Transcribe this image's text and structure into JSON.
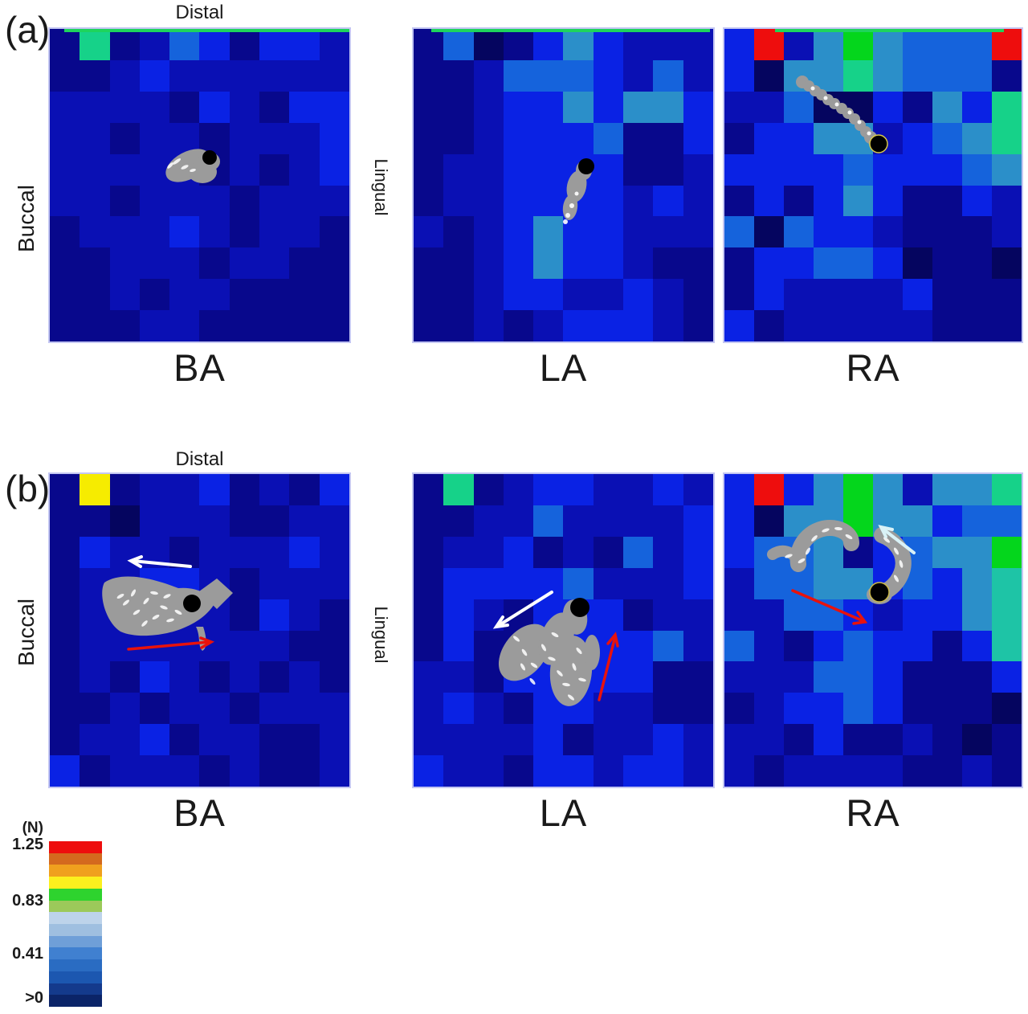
{
  "figure_labels": {
    "panel_a": "(a)",
    "panel_b": "(b)",
    "distal_a": "Distal",
    "distal_b": "Distal",
    "buccal_a": "Buccal",
    "lingual_a": "Lingual",
    "buccal_b": "Buccal",
    "lingual_b": "Lingual",
    "title_a_ba": "BA",
    "title_a_la": "LA",
    "title_a_ra": "RA",
    "title_b_ba": "BA",
    "title_b_la": "LA",
    "title_b_ra": "RA"
  },
  "legend": {
    "unit": "(N)",
    "ticks": {
      "max": "1.25",
      "mid_high": "0.83",
      "mid_low": "0.41",
      "min": ">0"
    },
    "band_colors_top_to_bottom": [
      "#EE0D0D",
      "#D4691E",
      "#F0A01E",
      "#FCF01E",
      "#2ED32E",
      "#9CC95A",
      "#BDD3EA",
      "#9FBFE0",
      "#6F9FD8",
      "#4080D0",
      "#2A6CC2",
      "#1C57B0",
      "#143A8C",
      "#0B2468"
    ]
  },
  "chart_data": {
    "type": "heatmap",
    "rows": 10,
    "cols": 10,
    "unit": "N",
    "scale_tick_labels": [
      "1.25",
      "0.83",
      "0.41",
      ">0"
    ],
    "palette": {
      "d3": "#05055F",
      "d2": "#08088C",
      "d1": "#0A10B4",
      "b0": "#0A22E4",
      "az": "#1563DC",
      "cy": "#2B8FC9",
      "tg": "#1EC4A6",
      "sg": "#16D289",
      "gr": "#04D61C",
      "yl": "#F6EC00",
      "rd": "#EE0D0D"
    },
    "top_edge_strip_color": "#1ED45C",
    "grids": {
      "a_BA": [
        "d2 sg d2 d1 az b0 d2 b0 b0 d1",
        "d2 d2 d1 b0 d1 d1 d1 d1 d1 d1",
        "d1 d1 d1 d1 d2 b0 d1 d2 b0 b0",
        "d1 d1 d2 d1 d1 d2 d1 d1 d1 b0",
        "d1 d1 d1 d1 d1 d2 d1 d2 d1 b0",
        "d1 d1 d2 d1 d1 d1 d2 d1 d1 d1",
        "d2 d1 d1 d1 b0 d1 d2 d1 d1 d2",
        "d2 d2 d1 d1 d1 d2 d1 d1 d2 d2",
        "d2 d2 d1 d2 d1 d1 d2 d2 d2 d2",
        "d2 d2 d2 d1 d1 d2 d2 d2 d2 d2"
      ],
      "a_LA": [
        "d2 az d3 d2 b0 cy b0 d1 d1 d1",
        "d2 d2 d1 az az az b0 d1 az d1",
        "d2 d2 d1 b0 b0 cy b0 cy cy b0",
        "d2 d2 d1 b0 b0 b0 az d2 d2 b0",
        "d2 d1 d1 b0 b0 b0 b0 d2 d2 d1",
        "d2 d1 d1 b0 b0 b0 b0 d1 b0 d1",
        "d1 d2 d1 b0 cy b0 b0 d1 d1 d1",
        "d2 d2 d1 b0 cy b0 b0 d1 d2 d2",
        "d2 d2 d1 b0 b0 d1 d1 b0 d1 d2",
        "d2 d2 d1 d2 d1 b0 b0 b0 d1 d2"
      ],
      "a_RA": [
        "b0 rd d1 cy gr cy az az az rd",
        "b0 d3 cy cy sg cy az az az d2",
        "d1 d1 az d3 d3 b0 d2 cy b0 sg",
        "d2 b0 b0 cy cy d1 b0 az cy sg",
        "b0 b0 b0 b0 az b0 b0 b0 az cy",
        "d2 b0 d2 b0 cy b0 d2 d2 b0 d1",
        "az d3 az b0 b0 d1 d2 d2 d2 d1",
        "d2 b0 b0 az az b0 d3 d2 d2 d3",
        "d2 b0 d1 d1 d1 d1 b0 d2 d2 d2",
        "b0 d2 d1 d1 d1 d1 d1 d2 d2 d2"
      ],
      "b_BA": [
        "d2 yl d2 d1 d1 b0 d2 d1 d2 b0",
        "d2 d2 d3 d1 d1 d1 d2 d2 d1 d1",
        "d2 b0 d1 d1 d2 d1 d1 d1 b0 d1",
        "d2 d1 d1 b0 b0 d1 d2 d1 d1 d1",
        "d2 d1 d1 d1 d1 d1 d2 b0 d1 d2",
        "d2 d1 d1 d1 d1 d1 d1 d1 d2 d2",
        "d2 d1 d2 b0 d1 d2 d1 d2 d1 d2",
        "d2 d2 d1 d2 d1 d1 d2 d1 d1 d1",
        "d2 d1 d1 b0 d2 d1 d1 d2 d2 d1",
        "b0 d2 d1 d1 d1 d2 d1 d2 d2 d1"
      ],
      "b_LA": [
        "d2 sg d2 d1 b0 b0 d1 d1 b0 d1",
        "d2 d2 d1 d1 az d1 d1 d1 d1 b0",
        "d2 d1 d1 b0 d2 d1 d2 az d1 b0",
        "d2 b0 b0 b0 b0 az d1 d1 d1 b0",
        "d2 b0 d1 d2 b0 b0 b0 d2 d1 d1",
        "d2 b0 d2 d2 b0 b0 b0 b0 az d1",
        "d1 d1 d2 b0 b0 b0 b0 b0 d2 d2",
        "d1 b0 d1 d2 b0 b0 d1 d1 d2 d2",
        "d1 d1 d1 d1 b0 d2 d1 d1 b0 d1",
        "b0 d1 d1 d2 b0 b0 d1 b0 b0 d1"
      ],
      "b_RA": [
        "b0 rd b0 cy gr cy d1 cy cy sg",
        "b0 d3 cy cy gr cy cy b0 az az",
        "b0 az az cy d2 b0 az cy cy gr",
        "d1 az az cy cy b0 az b0 cy tg",
        "d1 d1 az az b0 d1 b0 b0 cy tg",
        "az d1 d2 b0 az b0 b0 d2 b0 tg",
        "d1 d1 d1 az az b0 d2 d2 d2 b0",
        "d2 d1 b0 b0 az b0 d2 d2 d2 d3",
        "d1 d1 d2 b0 d2 d2 d1 d2 d3 d2",
        "d1 d2 d1 d1 d1 d1 d2 d2 d1 d2"
      ]
    }
  }
}
